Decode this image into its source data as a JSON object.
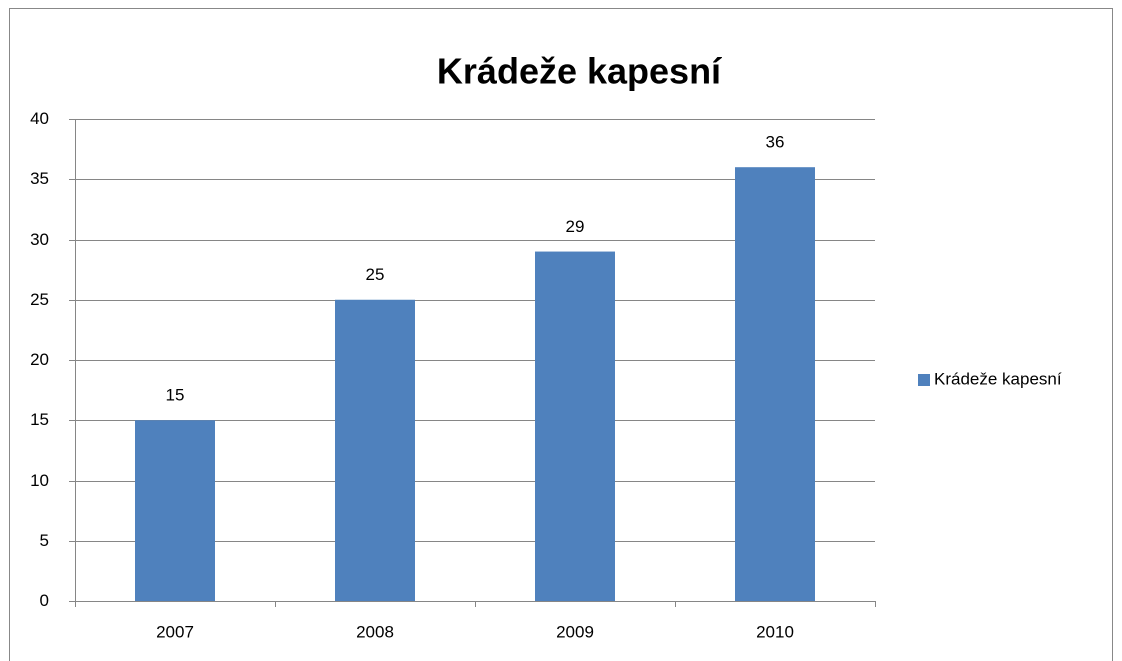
{
  "chart_data": {
    "type": "bar",
    "title": "Krádeže kapesní",
    "categories": [
      "2007",
      "2008",
      "2009",
      "2010"
    ],
    "series": [
      {
        "name": "Krádeže kapesní",
        "color": "#4f81bd",
        "values": [
          15,
          25,
          29,
          36
        ]
      }
    ],
    "ylim": [
      0,
      40
    ],
    "yticks": [
      0,
      5,
      10,
      15,
      20,
      25,
      30,
      35,
      40
    ],
    "grid": true,
    "legend": "right",
    "data_labels": true
  }
}
